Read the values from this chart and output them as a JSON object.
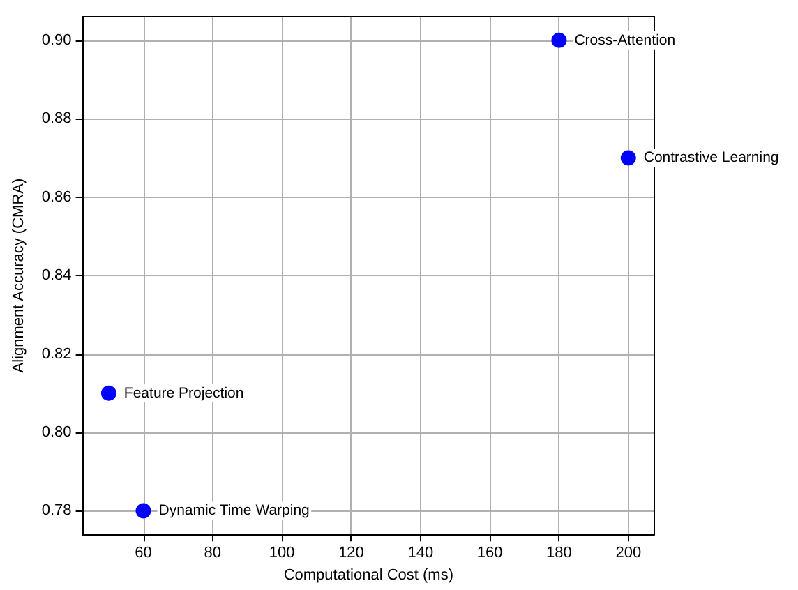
{
  "chart_data": {
    "type": "scatter",
    "xlabel": "Computational Cost (ms)",
    "ylabel": "Alignment Accuracy (CMRA)",
    "x": [
      50,
      60,
      180,
      200
    ],
    "series": [
      {
        "color": "#0000ff",
        "values": [
          0.81,
          0.78,
          0.9,
          0.87
        ]
      }
    ],
    "annotations": [
      {
        "text": "Feature Projection",
        "x": 50,
        "y": 0.81
      },
      {
        "text": "Dynamic Time Warping",
        "x": 60,
        "y": 0.78
      },
      {
        "text": "Cross-Attention",
        "x": 180,
        "y": 0.9
      },
      {
        "text": "Contrastive Learning",
        "x": 200,
        "y": 0.87
      }
    ],
    "xlim": [
      42.5,
      207.5
    ],
    "xticks": [
      60,
      80,
      100,
      120,
      140,
      160,
      180,
      200
    ],
    "ylim": [
      0.774,
      0.906
    ],
    "yticks": [
      0.78,
      {
        "value": 0.8,
        "label": "0.80"
      },
      0.82,
      0.84,
      0.86,
      0.88,
      {
        "value": 0.9,
        "label": "0.90"
      }
    ],
    "grid": true,
    "marker": "circle"
  }
}
